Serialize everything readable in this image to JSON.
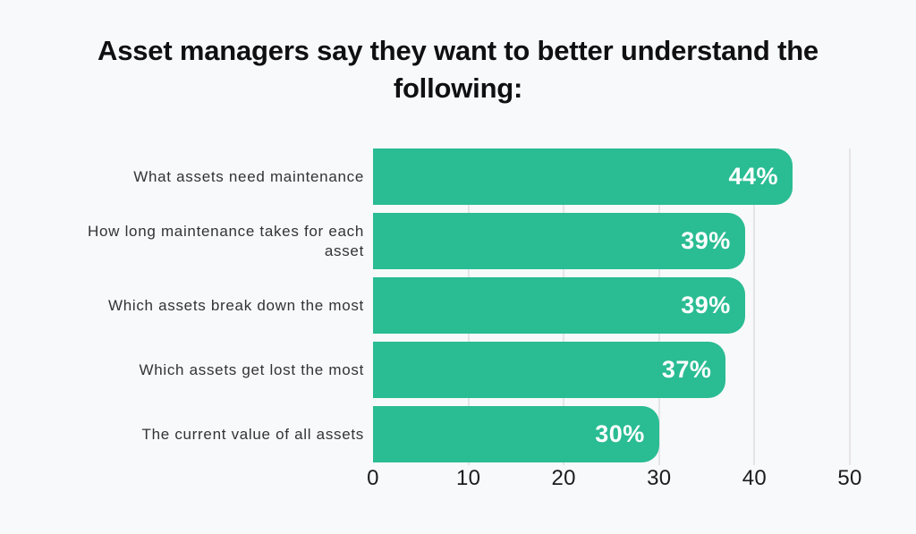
{
  "title": {
    "lines": [
      "Asset managers say they want to better understand the",
      "following:"
    ]
  },
  "chart_data": {
    "type": "bar",
    "orientation": "horizontal",
    "categories": [
      "What assets need maintenance",
      "How long maintenance takes for each asset",
      "Which assets break down the most",
      "Which assets get lost the most",
      "The current value of all assets"
    ],
    "values": [
      44,
      39,
      39,
      37,
      30
    ],
    "value_labels": [
      "44%",
      "39%",
      "39%",
      "37%",
      "30%"
    ],
    "x_ticks": [
      "0",
      "10",
      "20",
      "30",
      "40",
      "50"
    ],
    "xlim": [
      0,
      50
    ],
    "grid": true,
    "legend": false,
    "colors": {
      "bar": "#2abc93",
      "bar_value_text": "#ffffff",
      "background": "#f8f9fa",
      "gridline": "#e5e5e8",
      "title_text": "#101013",
      "category_text": "#333336",
      "tick_text": "#1c1c1e"
    }
  }
}
